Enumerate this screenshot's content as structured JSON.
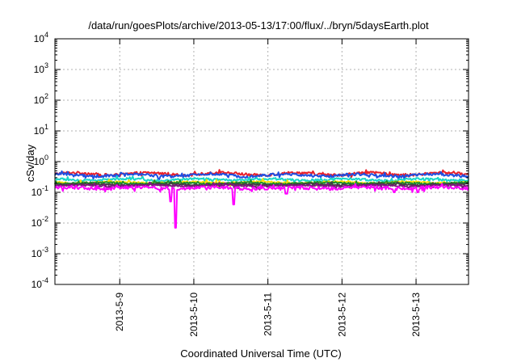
{
  "chart_data": {
    "type": "line",
    "title": "/data/run/goesPlots/archive/2013-05-13/17:00/flux/../bryn/5daysEarth.plot",
    "xlabel": "Coordinated Universal Time (UTC)",
    "ylabel": "cSv/day",
    "y_scale": "log",
    "ylim": [
      0.0001,
      10000
    ],
    "xlim": [
      "2013-05-08 03:00",
      "2013-05-13 17:00"
    ],
    "grid": true,
    "x_ticks": [
      {
        "date": "2013-05-09",
        "label": "2013-5-9"
      },
      {
        "date": "2013-05-10",
        "label": "2013-5-10"
      },
      {
        "date": "2013-05-11",
        "label": "2013-5-11"
      },
      {
        "date": "2013-05-12",
        "label": "2013-5-12"
      },
      {
        "date": "2013-05-13",
        "label": "2013-5-13"
      }
    ],
    "y_ticks": [
      {
        "value": 0.0001,
        "base": "10",
        "exp": "-4"
      },
      {
        "value": 0.001,
        "base": "10",
        "exp": "-3"
      },
      {
        "value": 0.01,
        "base": "10",
        "exp": "-2"
      },
      {
        "value": 0.1,
        "base": "10",
        "exp": "-1"
      },
      {
        "value": 1,
        "base": "10",
        "exp": "0"
      },
      {
        "value": 10,
        "base": "10",
        "exp": "1"
      },
      {
        "value": 100,
        "base": "10",
        "exp": "2"
      },
      {
        "value": 1000,
        "base": "10",
        "exp": "3"
      },
      {
        "value": 10000,
        "base": "10",
        "exp": "4"
      }
    ],
    "series": [
      {
        "color": "#e8202a",
        "level": 0.4,
        "amp": 0.09,
        "noise": 0.12,
        "dips": []
      },
      {
        "color": "#1f4fe0",
        "level": 0.36,
        "amp": 0.08,
        "noise": 0.12,
        "dips": []
      },
      {
        "color": "#18d6c8",
        "level": 0.26,
        "amp": 0.06,
        "noise": 0.1,
        "dips": []
      },
      {
        "color": "#ffe100",
        "level": 0.21,
        "amp": 0.05,
        "noise": 0.08,
        "dips": []
      },
      {
        "color": "#1c8f2a",
        "level": 0.2,
        "amp": 0.05,
        "noise": 0.08,
        "dips": []
      },
      {
        "color": "#404040",
        "level": 0.18,
        "amp": 0.04,
        "noise": 0.07,
        "dips": []
      },
      {
        "color": "#7a1a7a",
        "level": 0.165,
        "amp": 0.04,
        "noise": 0.07,
        "dips": []
      },
      {
        "color": "#ff00ff",
        "level": 0.14,
        "amp": 0.05,
        "noise": 0.15,
        "dips": [
          {
            "date": "2013-05-09 18:00",
            "value": 0.007
          },
          {
            "date": "2013-05-09 16:30",
            "value": 0.05
          },
          {
            "date": "2013-05-10 13:00",
            "value": 0.04
          },
          {
            "date": "2013-05-11 06:00",
            "value": 0.09
          },
          {
            "date": "2013-05-12 17:00",
            "value": 0.1
          },
          {
            "date": "2013-05-13 00:30",
            "value": 0.1
          }
        ]
      }
    ]
  }
}
